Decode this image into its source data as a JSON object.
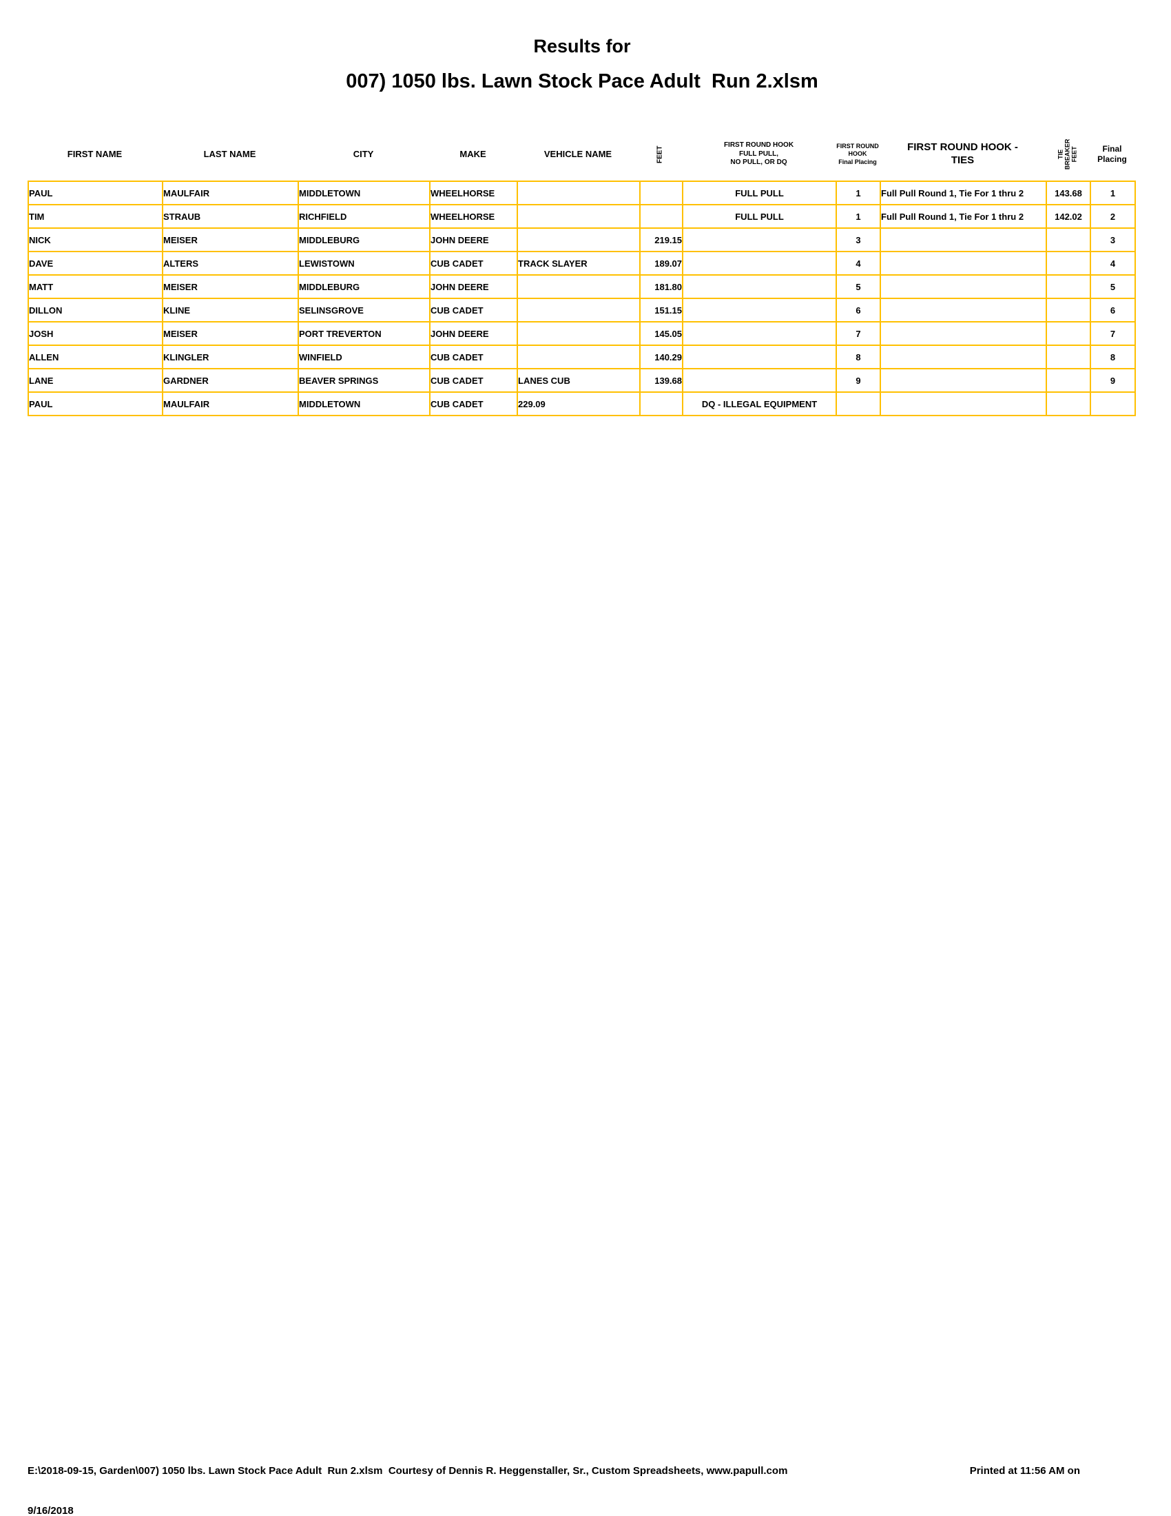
{
  "title": {
    "line1": "Results for",
    "line2": "007) 1050 lbs. Lawn Stock Pace Adult  Run 2.xlsm"
  },
  "table": {
    "columns": [
      {
        "key": "first-name",
        "lines": [
          "FIRST NAME"
        ],
        "rotated": false
      },
      {
        "key": "last-name",
        "lines": [
          "LAST NAME"
        ],
        "rotated": false
      },
      {
        "key": "city",
        "lines": [
          "CITY"
        ],
        "rotated": false
      },
      {
        "key": "make",
        "lines": [
          "MAKE"
        ],
        "rotated": false
      },
      {
        "key": "vehicle-name",
        "lines": [
          "VEHICLE NAME"
        ],
        "rotated": false
      },
      {
        "key": "feet",
        "lines": [
          "FEET"
        ],
        "rotated": true
      },
      {
        "key": "first-round-hook-result",
        "lines": [
          "FIRST ROUND HOOK",
          "FULL PULL,",
          "NO PULL, OR DQ"
        ],
        "rotated": false
      },
      {
        "key": "first-round-hook-placing",
        "lines": [
          "FIRST ROUND",
          "HOOK",
          "Final Placing"
        ],
        "rotated": false
      },
      {
        "key": "first-round-hook-ties",
        "lines": [
          "FIRST ROUND HOOK -",
          "TIES"
        ],
        "rotated": false
      },
      {
        "key": "tie-breaker-feet",
        "lines": [
          "TIE",
          "BREAKER",
          "FEET"
        ],
        "rotated": true
      },
      {
        "key": "final-placing",
        "lines": [
          "Final",
          "Placing"
        ],
        "rotated": false
      }
    ],
    "rows": [
      [
        "PAUL",
        "MAULFAIR",
        "MIDDLETOWN",
        "WHEELHORSE",
        "",
        "",
        "FULL PULL",
        "1",
        "Full Pull Round 1, Tie For 1 thru 2",
        "143.68",
        "1"
      ],
      [
        "TIM",
        "STRAUB",
        "RICHFIELD",
        "WHEELHORSE",
        "",
        "",
        "FULL PULL",
        "1",
        "Full Pull Round 1, Tie For 1 thru 2",
        "142.02",
        "2"
      ],
      [
        "NICK",
        "MEISER",
        "MIDDLEBURG",
        "JOHN DEERE",
        "",
        "219.15",
        "",
        "3",
        "",
        "",
        "3"
      ],
      [
        "DAVE",
        "ALTERS",
        "LEWISTOWN",
        "CUB CADET",
        "TRACK SLAYER",
        "189.07",
        "",
        "4",
        "",
        "",
        "4"
      ],
      [
        "MATT",
        "MEISER",
        "MIDDLEBURG",
        "JOHN DEERE",
        "",
        "181.80",
        "",
        "5",
        "",
        "",
        "5"
      ],
      [
        "DILLON",
        "KLINE",
        "SELINSGROVE",
        "CUB CADET",
        "",
        "151.15",
        "",
        "6",
        "",
        "",
        "6"
      ],
      [
        "JOSH",
        "MEISER",
        "PORT TREVERTON",
        "JOHN DEERE",
        "",
        "145.05",
        "",
        "7",
        "",
        "",
        "7"
      ],
      [
        "ALLEN",
        "KLINGLER",
        "WINFIELD",
        "CUB CADET",
        "",
        "140.29",
        "",
        "8",
        "",
        "",
        "8"
      ],
      [
        "LANE",
        "GARDNER",
        "BEAVER SPRINGS",
        "CUB CADET",
        "LANES CUB",
        "139.68",
        "",
        "9",
        "",
        "",
        "9"
      ],
      [
        "PAUL",
        "MAULFAIR",
        "MIDDLETOWN",
        "CUB CADET",
        "229.09",
        "",
        "DQ - ILLEGAL EQUIPMENT",
        "",
        "",
        "",
        ""
      ]
    ]
  },
  "footer": {
    "left": "E:\\2018-09-15, Garden\\007) 1050 lbs. Lawn Stock Pace Adult  Run 2.xlsm  Courtesy of Dennis R. Heggenstaller, Sr., Custom Spreadsheets, www.papull.com",
    "printed": "Printed at 11:56 AM on",
    "date": "9/16/2018"
  },
  "colors": {
    "grid_border": "#FFC000",
    "text": "#000000",
    "background": "#FFFFFF"
  }
}
